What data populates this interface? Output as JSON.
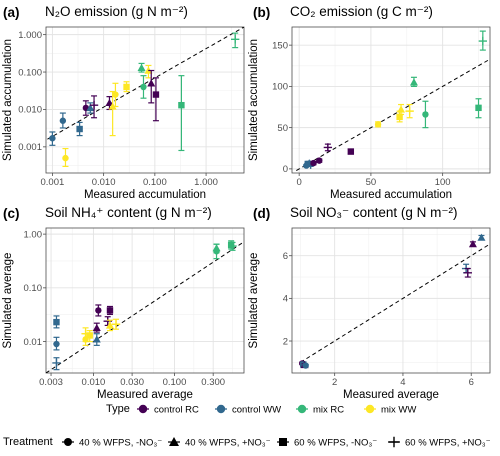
{
  "colors": {
    "control_RC": "#440154",
    "control_WW": "#31688e",
    "mix_RC": "#35b779",
    "mix_WW": "#fde725"
  },
  "chart_data": [
    {
      "type": "scatter",
      "label": "(a)",
      "title": "N₂O emission (g N m⁻²)",
      "xlabel": "Measured accumulation",
      "ylabel": "Simulated accumulation",
      "xscale": "log",
      "yscale": "log",
      "xlim": [
        0.00075,
        5.5
      ],
      "ylim": [
        0.0002,
        1.6
      ],
      "xticks": [
        {
          "v": 0.001,
          "t": "0.001"
        },
        {
          "v": 0.01,
          "t": "0.010"
        },
        {
          "v": 0.1,
          "t": "0.100"
        },
        {
          "v": 1,
          "t": "1.000"
        }
      ],
      "yticks": [
        {
          "v": 0.001,
          "t": "0.001"
        },
        {
          "v": 0.01,
          "t": "0.010"
        },
        {
          "v": 0.1,
          "t": "0.100"
        },
        {
          "v": 1,
          "t": "1.000"
        }
      ],
      "line": [
        [
          0.0008,
          0.0016
        ],
        [
          5.5,
          1.6
        ]
      ],
      "points": [
        {
          "x": 0.001,
          "y": 0.0017,
          "lo": 0.0011,
          "hi": 0.0025,
          "type": "control_WW",
          "shape": "circle"
        },
        {
          "x": 0.0016,
          "y": 0.005,
          "lo": 0.0032,
          "hi": 0.008,
          "type": "control_WW",
          "shape": "circle"
        },
        {
          "x": 0.0018,
          "y": 0.0005,
          "lo": 0.0003,
          "hi": 0.0009,
          "type": "mix_WW",
          "shape": "circle"
        },
        {
          "x": 0.0034,
          "y": 0.003,
          "lo": 0.002,
          "hi": 0.0045,
          "type": "control_WW",
          "shape": "square"
        },
        {
          "x": 0.0045,
          "y": 0.011,
          "lo": 0.007,
          "hi": 0.017,
          "type": "control_RC",
          "shape": "circle"
        },
        {
          "x": 0.0055,
          "y": 0.011,
          "lo": 0.008,
          "hi": 0.015,
          "type": "control_WW",
          "shape": "triangle"
        },
        {
          "x": 0.0065,
          "y": 0.013,
          "lo": 0.006,
          "hi": 0.023,
          "type": "control_RC",
          "shape": "cross"
        },
        {
          "x": 0.013,
          "y": 0.015,
          "lo": 0.01,
          "hi": 0.022,
          "type": "control_RC",
          "shape": "triangle"
        },
        {
          "x": 0.015,
          "y": 0.012,
          "lo": 0.002,
          "hi": 0.03,
          "type": "mix_WW",
          "shape": "triangle"
        },
        {
          "x": 0.017,
          "y": 0.025,
          "lo": 0.012,
          "hi": 0.05,
          "type": "mix_WW",
          "shape": "circle"
        },
        {
          "x": 0.028,
          "y": 0.04,
          "lo": 0.03,
          "hi": 0.055,
          "type": "mix_WW",
          "shape": "square"
        },
        {
          "x": 0.055,
          "y": 0.13,
          "lo": 0.1,
          "hi": 0.17,
          "type": "mix_RC",
          "shape": "triangle"
        },
        {
          "x": 0.06,
          "y": 0.04,
          "lo": 0.02,
          "hi": 0.08,
          "type": "mix_RC",
          "shape": "circle"
        },
        {
          "x": 0.075,
          "y": 0.11,
          "lo": 0.07,
          "hi": 0.15,
          "type": "mix_WW",
          "shape": "triangle"
        },
        {
          "x": 0.085,
          "y": 0.05,
          "lo": 0.015,
          "hi": 0.11,
          "type": "control_RC",
          "shape": "triangle"
        },
        {
          "x": 0.105,
          "y": 0.025,
          "lo": 0.005,
          "hi": 0.07,
          "type": "control_RC",
          "shape": "square"
        },
        {
          "x": 0.33,
          "y": 0.013,
          "lo": 0.0008,
          "hi": 0.08,
          "type": "mix_RC",
          "shape": "square"
        },
        {
          "x": 3.7,
          "y": 0.75,
          "lo": 0.45,
          "hi": 1.1,
          "type": "mix_RC",
          "shape": "cross"
        }
      ]
    },
    {
      "type": "scatter",
      "label": "(b)",
      "title": "CO₂ emission (g C m⁻²)",
      "xlabel": "Measured accumulation",
      "ylabel": "Simulated accumulation",
      "xscale": "linear",
      "yscale": "linear",
      "xlim": [
        -5,
        133
      ],
      "ylim": [
        -5,
        172
      ],
      "xticks": [
        {
          "v": 0,
          "t": "0"
        },
        {
          "v": 50,
          "t": "50"
        },
        {
          "v": 100,
          "t": "100"
        }
      ],
      "yticks": [
        {
          "v": 0,
          "t": "0"
        },
        {
          "v": 50,
          "t": "50"
        },
        {
          "v": 100,
          "t": "100"
        },
        {
          "v": 150,
          "t": "150"
        }
      ],
      "line": [
        [
          -2,
          -2
        ],
        [
          133,
          133
        ]
      ],
      "points": [
        {
          "x": 5,
          "y": 4,
          "lo": 3,
          "hi": 5,
          "type": "control_WW",
          "shape": "circle"
        },
        {
          "x": 6,
          "y": 6,
          "lo": 4,
          "hi": 8,
          "type": "control_WW",
          "shape": "square"
        },
        {
          "x": 7,
          "y": 7,
          "lo": 5,
          "hi": 9,
          "type": "control_WW",
          "shape": "triangle"
        },
        {
          "x": 8,
          "y": 5,
          "lo": 3,
          "hi": 7,
          "type": "control_WW",
          "shape": "cross"
        },
        {
          "x": 10,
          "y": 7,
          "lo": 5,
          "hi": 9,
          "type": "control_RC",
          "shape": "circle"
        },
        {
          "x": 14,
          "y": 10,
          "lo": 8,
          "hi": 12,
          "type": "control_RC",
          "shape": "circle"
        },
        {
          "x": 20,
          "y": 26,
          "lo": 22,
          "hi": 30,
          "type": "control_RC",
          "shape": "cross"
        },
        {
          "x": 36,
          "y": 21,
          "lo": 18,
          "hi": 24,
          "type": "control_RC",
          "shape": "square"
        },
        {
          "x": 55,
          "y": 54,
          "lo": 51,
          "hi": 57,
          "type": "mix_WW",
          "shape": "circle"
        },
        {
          "x": 70,
          "y": 63,
          "lo": 57,
          "hi": 70,
          "type": "mix_WW",
          "shape": "square"
        },
        {
          "x": 71,
          "y": 72,
          "lo": 66,
          "hi": 78,
          "type": "mix_WW",
          "shape": "triangle"
        },
        {
          "x": 77,
          "y": 70,
          "lo": 62,
          "hi": 78,
          "type": "mix_WW",
          "shape": "cross"
        },
        {
          "x": 80,
          "y": 105,
          "lo": 100,
          "hi": 111,
          "type": "mix_RC",
          "shape": "triangle"
        },
        {
          "x": 88,
          "y": 66,
          "lo": 50,
          "hi": 82,
          "type": "mix_RC",
          "shape": "circle"
        },
        {
          "x": 125,
          "y": 74,
          "lo": 62,
          "hi": 85,
          "type": "mix_RC",
          "shape": "square"
        },
        {
          "x": 128,
          "y": 155,
          "lo": 144,
          "hi": 167,
          "type": "mix_RC",
          "shape": "cross"
        }
      ]
    },
    {
      "type": "scatter",
      "label": "(c)",
      "title": "Soil NH₄⁺ content (g N m⁻²)",
      "xlabel": "Measured average",
      "ylabel": "Simulated average",
      "xscale": "log",
      "yscale": "log",
      "xlim": [
        0.0026,
        0.72
      ],
      "ylim": [
        0.0026,
        1.3
      ],
      "xticks": [
        {
          "v": 0.003,
          "t": "0.003"
        },
        {
          "v": 0.01,
          "t": "0.010"
        },
        {
          "v": 0.03,
          "t": "0.030"
        },
        {
          "v": 0.1,
          "t": "0.100"
        },
        {
          "v": 0.3,
          "t": "0.300"
        }
      ],
      "yticks": [
        {
          "v": 0.01,
          "t": "0.01"
        },
        {
          "v": 0.1,
          "t": "0.10"
        },
        {
          "v": 1,
          "t": "1.00"
        }
      ],
      "line": [
        [
          0.0026,
          0.0026
        ],
        [
          0.72,
          0.72
        ]
      ],
      "points": [
        {
          "x": 0.0035,
          "y": 0.004,
          "lo": 0.003,
          "hi": 0.005,
          "type": "control_WW",
          "shape": "cross"
        },
        {
          "x": 0.0035,
          "y": 0.009,
          "lo": 0.007,
          "hi": 0.012,
          "type": "control_WW",
          "shape": "circle"
        },
        {
          "x": 0.0035,
          "y": 0.023,
          "lo": 0.018,
          "hi": 0.03,
          "type": "control_WW",
          "shape": "square"
        },
        {
          "x": 0.008,
          "y": 0.011,
          "lo": 0.0085,
          "hi": 0.014,
          "type": "mix_WW",
          "shape": "circle"
        },
        {
          "x": 0.008,
          "y": 0.014,
          "lo": 0.01,
          "hi": 0.018,
          "type": "mix_WW",
          "shape": "cross"
        },
        {
          "x": 0.009,
          "y": 0.013,
          "lo": 0.01,
          "hi": 0.016,
          "type": "mix_WW",
          "shape": "square"
        },
        {
          "x": 0.011,
          "y": 0.011,
          "lo": 0.0085,
          "hi": 0.014,
          "type": "control_WW",
          "shape": "triangle"
        },
        {
          "x": 0.011,
          "y": 0.018,
          "lo": 0.015,
          "hi": 0.022,
          "type": "control_RC",
          "shape": "triangle"
        },
        {
          "x": 0.0115,
          "y": 0.038,
          "lo": 0.03,
          "hi": 0.048,
          "type": "control_RC",
          "shape": "circle"
        },
        {
          "x": 0.015,
          "y": 0.024,
          "lo": 0.02,
          "hi": 0.029,
          "type": "control_RC",
          "shape": "cross"
        },
        {
          "x": 0.016,
          "y": 0.038,
          "lo": 0.032,
          "hi": 0.045,
          "type": "control_RC",
          "shape": "square"
        },
        {
          "x": 0.016,
          "y": 0.02,
          "lo": 0.016,
          "hi": 0.025,
          "type": "mix_WW",
          "shape": "triangle"
        },
        {
          "x": 0.019,
          "y": 0.021,
          "lo": 0.017,
          "hi": 0.026,
          "type": "mix_WW",
          "shape": "cross"
        },
        {
          "x": 0.33,
          "y": 0.48,
          "lo": 0.35,
          "hi": 0.65,
          "type": "mix_RC",
          "shape": "circle"
        },
        {
          "x": 0.33,
          "y": 0.55,
          "lo": 0.45,
          "hi": 0.65,
          "type": "mix_RC",
          "shape": "triangle"
        },
        {
          "x": 0.5,
          "y": 0.63,
          "lo": 0.53,
          "hi": 0.75,
          "type": "mix_RC",
          "shape": "square"
        },
        {
          "x": 0.52,
          "y": 0.6,
          "lo": 0.5,
          "hi": 0.7,
          "type": "mix_RC",
          "shape": "cross"
        }
      ]
    },
    {
      "type": "scatter",
      "label": "(d)",
      "title": "Soil NO₃⁻ content (g N m⁻²)",
      "xlabel": "Measured average",
      "ylabel": "Simulated average",
      "xscale": "linear",
      "yscale": "linear",
      "xlim": [
        0.75,
        6.55
      ],
      "ylim": [
        0.5,
        7.3
      ],
      "xticks": [
        {
          "v": 2,
          "t": "2"
        },
        {
          "v": 4,
          "t": "4"
        },
        {
          "v": 6,
          "t": "6"
        }
      ],
      "yticks": [
        {
          "v": 2,
          "t": "2"
        },
        {
          "v": 4,
          "t": "4"
        },
        {
          "v": 6,
          "t": "6"
        }
      ],
      "line": [
        [
          1.0,
          1.0
        ],
        [
          6.55,
          6.55
        ]
      ],
      "points": [
        {
          "x": 1.05,
          "y": 0.95,
          "lo": 0.9,
          "hi": 1.0,
          "type": "control_RC",
          "shape": "circle"
        },
        {
          "x": 1.08,
          "y": 0.9,
          "lo": 0.85,
          "hi": 0.95,
          "type": "control_WW",
          "shape": "square"
        },
        {
          "x": 1.12,
          "y": 0.88,
          "lo": 0.83,
          "hi": 0.93,
          "type": "control_RC",
          "shape": "triangle"
        },
        {
          "x": 1.15,
          "y": 0.85,
          "lo": 0.8,
          "hi": 0.9,
          "type": "control_WW",
          "shape": "circle"
        },
        {
          "x": 5.85,
          "y": 5.4,
          "lo": 5.2,
          "hi": 5.6,
          "type": "control_WW",
          "shape": "cross"
        },
        {
          "x": 5.9,
          "y": 5.2,
          "lo": 5.0,
          "hi": 5.4,
          "type": "control_RC",
          "shape": "cross"
        },
        {
          "x": 6.05,
          "y": 6.55,
          "lo": 6.45,
          "hi": 6.65,
          "type": "control_RC",
          "shape": "triangle"
        },
        {
          "x": 6.3,
          "y": 6.85,
          "lo": 6.75,
          "hi": 6.95,
          "type": "control_WW",
          "shape": "triangle"
        }
      ]
    }
  ],
  "legend": {
    "type_title": "Type",
    "types": [
      {
        "key": "control_RC",
        "label": "control RC"
      },
      {
        "key": "control_WW",
        "label": "control WW"
      },
      {
        "key": "mix_RC",
        "label": "mix RC"
      },
      {
        "key": "mix_WW",
        "label": "mix WW"
      }
    ],
    "treatment_title": "Treatment",
    "treatments": [
      {
        "shape": "circle",
        "label": "40 % WFPS, -NO₃⁻"
      },
      {
        "shape": "triangle",
        "label": "40 % WFPS, +NO₃⁻"
      },
      {
        "shape": "square",
        "label": "60 % WFPS, -NO₃⁻"
      },
      {
        "shape": "cross",
        "label": "60 % WFPS, +NO₃⁻"
      }
    ]
  }
}
